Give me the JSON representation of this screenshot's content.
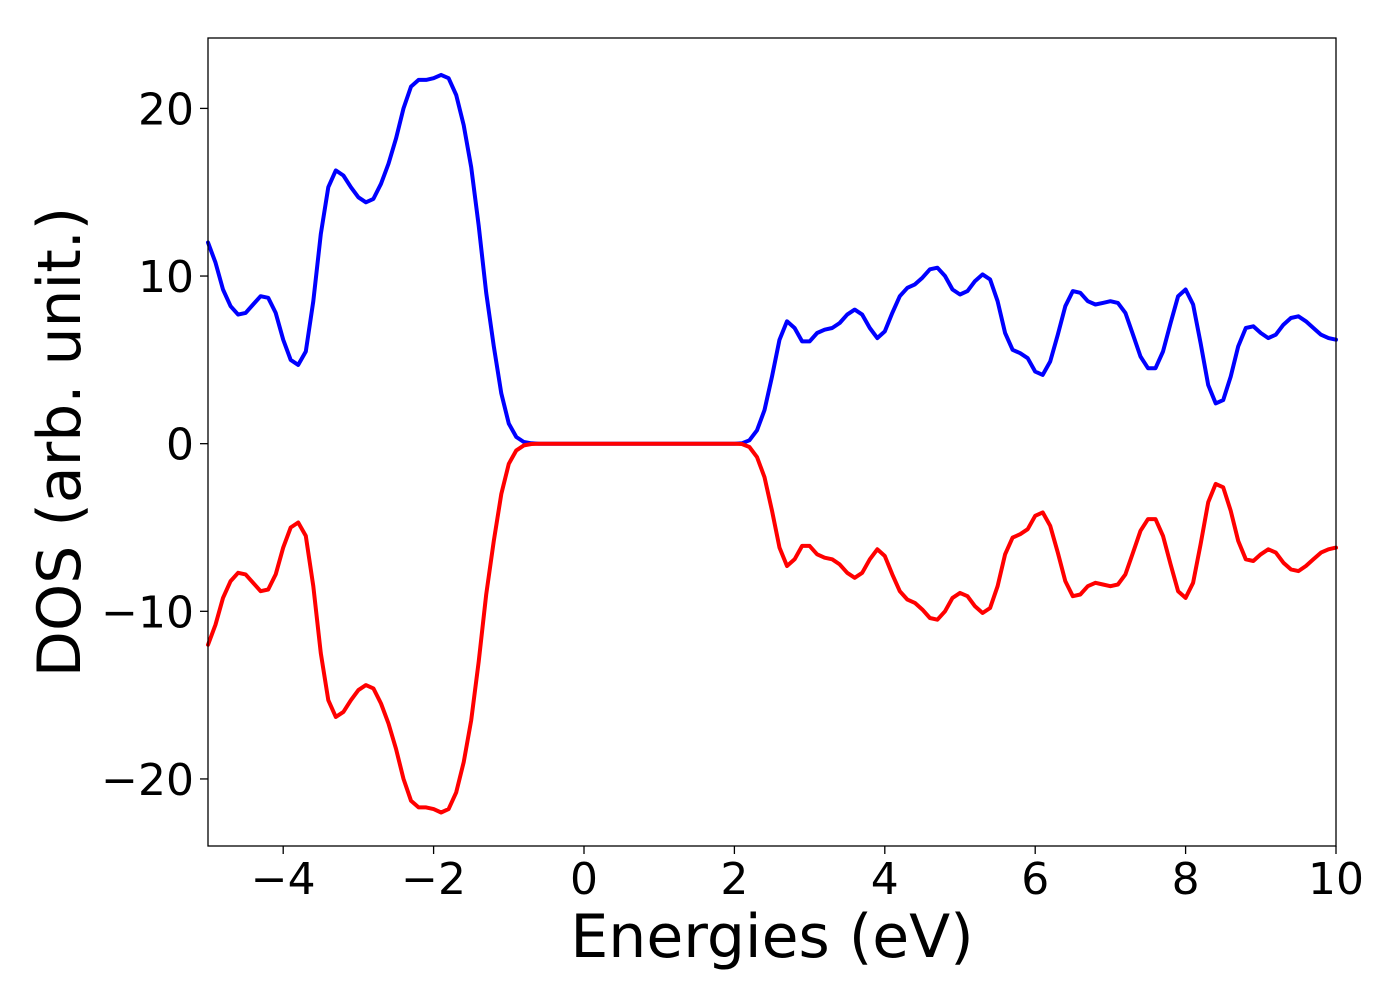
{
  "chart_data": {
    "type": "line",
    "title": "",
    "xlabel": "Energies (eV)",
    "ylabel": "DOS (arb. unit.)",
    "xlim": [
      -5,
      10
    ],
    "ylim": [
      -24,
      24.2
    ],
    "grid": false,
    "legend": "none",
    "x_ticks": [
      -4,
      -2,
      0,
      2,
      4,
      6,
      8,
      10
    ],
    "x_tick_labels": [
      "−4",
      "−2",
      "0",
      "2",
      "4",
      "6",
      "8",
      "10"
    ],
    "y_ticks": [
      -20,
      -10,
      0,
      10,
      20
    ],
    "y_tick_labels": [
      "−20",
      "−10",
      "0",
      "10",
      "20"
    ],
    "series": [
      {
        "color": "#0000ff",
        "points": [
          [
            -5.0,
            12.0
          ],
          [
            -4.9,
            10.8
          ],
          [
            -4.8,
            9.2
          ],
          [
            -4.7,
            8.2
          ],
          [
            -4.6,
            7.7
          ],
          [
            -4.5,
            7.8
          ],
          [
            -4.4,
            8.3
          ],
          [
            -4.3,
            8.8
          ],
          [
            -4.2,
            8.7
          ],
          [
            -4.1,
            7.8
          ],
          [
            -4.0,
            6.2
          ],
          [
            -3.9,
            5.0
          ],
          [
            -3.8,
            4.7
          ],
          [
            -3.7,
            5.5
          ],
          [
            -3.6,
            8.5
          ],
          [
            -3.5,
            12.5
          ],
          [
            -3.4,
            15.3
          ],
          [
            -3.3,
            16.3
          ],
          [
            -3.2,
            16.0
          ],
          [
            -3.1,
            15.3
          ],
          [
            -3.0,
            14.7
          ],
          [
            -2.9,
            14.4
          ],
          [
            -2.8,
            14.6
          ],
          [
            -2.7,
            15.5
          ],
          [
            -2.6,
            16.7
          ],
          [
            -2.5,
            18.2
          ],
          [
            -2.4,
            20.0
          ],
          [
            -2.3,
            21.3
          ],
          [
            -2.2,
            21.7
          ],
          [
            -2.1,
            21.7
          ],
          [
            -2.0,
            21.8
          ],
          [
            -1.9,
            22.0
          ],
          [
            -1.8,
            21.8
          ],
          [
            -1.7,
            20.8
          ],
          [
            -1.6,
            19.0
          ],
          [
            -1.5,
            16.5
          ],
          [
            -1.4,
            13.0
          ],
          [
            -1.3,
            9.0
          ],
          [
            -1.2,
            5.8
          ],
          [
            -1.1,
            3.0
          ],
          [
            -1.0,
            1.2
          ],
          [
            -0.9,
            0.4
          ],
          [
            -0.8,
            0.1
          ],
          [
            -0.7,
            0.02
          ],
          [
            -0.6,
            0.0
          ],
          [
            -0.4,
            0.0
          ],
          [
            0.0,
            0.0
          ],
          [
            0.5,
            0.0
          ],
          [
            1.0,
            0.0
          ],
          [
            1.5,
            0.0
          ],
          [
            2.0,
            0.0
          ],
          [
            2.1,
            0.02
          ],
          [
            2.2,
            0.2
          ],
          [
            2.3,
            0.8
          ],
          [
            2.4,
            2.0
          ],
          [
            2.5,
            4.0
          ],
          [
            2.6,
            6.2
          ],
          [
            2.7,
            7.3
          ],
          [
            2.8,
            6.9
          ],
          [
            2.9,
            6.1
          ],
          [
            3.0,
            6.1
          ],
          [
            3.1,
            6.6
          ],
          [
            3.2,
            6.8
          ],
          [
            3.3,
            6.9
          ],
          [
            3.4,
            7.2
          ],
          [
            3.5,
            7.7
          ],
          [
            3.6,
            8.0
          ],
          [
            3.7,
            7.7
          ],
          [
            3.8,
            6.9
          ],
          [
            3.9,
            6.3
          ],
          [
            4.0,
            6.7
          ],
          [
            4.1,
            7.8
          ],
          [
            4.2,
            8.8
          ],
          [
            4.3,
            9.3
          ],
          [
            4.4,
            9.5
          ],
          [
            4.5,
            9.9
          ],
          [
            4.6,
            10.4
          ],
          [
            4.7,
            10.5
          ],
          [
            4.8,
            10.0
          ],
          [
            4.9,
            9.2
          ],
          [
            5.0,
            8.9
          ],
          [
            5.1,
            9.1
          ],
          [
            5.2,
            9.7
          ],
          [
            5.3,
            10.1
          ],
          [
            5.4,
            9.8
          ],
          [
            5.5,
            8.5
          ],
          [
            5.6,
            6.6
          ],
          [
            5.7,
            5.6
          ],
          [
            5.8,
            5.4
          ],
          [
            5.9,
            5.1
          ],
          [
            6.0,
            4.3
          ],
          [
            6.1,
            4.1
          ],
          [
            6.2,
            4.9
          ],
          [
            6.3,
            6.5
          ],
          [
            6.4,
            8.2
          ],
          [
            6.5,
            9.1
          ],
          [
            6.6,
            9.0
          ],
          [
            6.7,
            8.5
          ],
          [
            6.8,
            8.3
          ],
          [
            6.9,
            8.4
          ],
          [
            7.0,
            8.5
          ],
          [
            7.1,
            8.4
          ],
          [
            7.2,
            7.8
          ],
          [
            7.3,
            6.5
          ],
          [
            7.4,
            5.2
          ],
          [
            7.5,
            4.5
          ],
          [
            7.6,
            4.5
          ],
          [
            7.7,
            5.5
          ],
          [
            7.8,
            7.2
          ],
          [
            7.9,
            8.8
          ],
          [
            8.0,
            9.2
          ],
          [
            8.1,
            8.3
          ],
          [
            8.2,
            6.0
          ],
          [
            8.3,
            3.5
          ],
          [
            8.4,
            2.4
          ],
          [
            8.5,
            2.6
          ],
          [
            8.6,
            4.0
          ],
          [
            8.7,
            5.8
          ],
          [
            8.8,
            6.9
          ],
          [
            8.9,
            7.0
          ],
          [
            9.0,
            6.6
          ],
          [
            9.1,
            6.3
          ],
          [
            9.2,
            6.5
          ],
          [
            9.3,
            7.1
          ],
          [
            9.4,
            7.5
          ],
          [
            9.5,
            7.6
          ],
          [
            9.6,
            7.3
          ],
          [
            9.7,
            6.9
          ],
          [
            9.8,
            6.5
          ],
          [
            9.9,
            6.3
          ],
          [
            10.0,
            6.2
          ]
        ]
      },
      {
        "color": "#ff0000",
        "points": [
          [
            -5.0,
            -12.0
          ],
          [
            -4.9,
            -10.8
          ],
          [
            -4.8,
            -9.2
          ],
          [
            -4.7,
            -8.2
          ],
          [
            -4.6,
            -7.7
          ],
          [
            -4.5,
            -7.8
          ],
          [
            -4.4,
            -8.3
          ],
          [
            -4.3,
            -8.8
          ],
          [
            -4.2,
            -8.7
          ],
          [
            -4.1,
            -7.8
          ],
          [
            -4.0,
            -6.2
          ],
          [
            -3.9,
            -5.0
          ],
          [
            -3.8,
            -4.7
          ],
          [
            -3.7,
            -5.5
          ],
          [
            -3.6,
            -8.5
          ],
          [
            -3.5,
            -12.5
          ],
          [
            -3.4,
            -15.3
          ],
          [
            -3.3,
            -16.3
          ],
          [
            -3.2,
            -16.0
          ],
          [
            -3.1,
            -15.3
          ],
          [
            -3.0,
            -14.7
          ],
          [
            -2.9,
            -14.4
          ],
          [
            -2.8,
            -14.6
          ],
          [
            -2.7,
            -15.5
          ],
          [
            -2.6,
            -16.7
          ],
          [
            -2.5,
            -18.2
          ],
          [
            -2.4,
            -20.0
          ],
          [
            -2.3,
            -21.3
          ],
          [
            -2.2,
            -21.7
          ],
          [
            -2.1,
            -21.7
          ],
          [
            -2.0,
            -21.8
          ],
          [
            -1.9,
            -22.0
          ],
          [
            -1.8,
            -21.8
          ],
          [
            -1.7,
            -20.8
          ],
          [
            -1.6,
            -19.0
          ],
          [
            -1.5,
            -16.5
          ],
          [
            -1.4,
            -13.0
          ],
          [
            -1.3,
            -9.0
          ],
          [
            -1.2,
            -5.8
          ],
          [
            -1.1,
            -3.0
          ],
          [
            -1.0,
            -1.2
          ],
          [
            -0.9,
            -0.4
          ],
          [
            -0.8,
            -0.1
          ],
          [
            -0.7,
            -0.02
          ],
          [
            -0.6,
            0.0
          ],
          [
            -0.4,
            0.0
          ],
          [
            0.0,
            0.0
          ],
          [
            0.5,
            0.0
          ],
          [
            1.0,
            0.0
          ],
          [
            1.5,
            0.0
          ],
          [
            2.0,
            0.0
          ],
          [
            2.1,
            -0.02
          ],
          [
            2.2,
            -0.2
          ],
          [
            2.3,
            -0.8
          ],
          [
            2.4,
            -2.0
          ],
          [
            2.5,
            -4.0
          ],
          [
            2.6,
            -6.2
          ],
          [
            2.7,
            -7.3
          ],
          [
            2.8,
            -6.9
          ],
          [
            2.9,
            -6.1
          ],
          [
            3.0,
            -6.1
          ],
          [
            3.1,
            -6.6
          ],
          [
            3.2,
            -6.8
          ],
          [
            3.3,
            -6.9
          ],
          [
            3.4,
            -7.2
          ],
          [
            3.5,
            -7.7
          ],
          [
            3.6,
            -8.0
          ],
          [
            3.7,
            -7.7
          ],
          [
            3.8,
            -6.9
          ],
          [
            3.9,
            -6.3
          ],
          [
            4.0,
            -6.7
          ],
          [
            4.1,
            -7.8
          ],
          [
            4.2,
            -8.8
          ],
          [
            4.3,
            -9.3
          ],
          [
            4.4,
            -9.5
          ],
          [
            4.5,
            -9.9
          ],
          [
            4.6,
            -10.4
          ],
          [
            4.7,
            -10.5
          ],
          [
            4.8,
            -10.0
          ],
          [
            4.9,
            -9.2
          ],
          [
            5.0,
            -8.9
          ],
          [
            5.1,
            -9.1
          ],
          [
            5.2,
            -9.7
          ],
          [
            5.3,
            -10.1
          ],
          [
            5.4,
            -9.8
          ],
          [
            5.5,
            -8.5
          ],
          [
            5.6,
            -6.6
          ],
          [
            5.7,
            -5.6
          ],
          [
            5.8,
            -5.4
          ],
          [
            5.9,
            -5.1
          ],
          [
            6.0,
            -4.3
          ],
          [
            6.1,
            -4.1
          ],
          [
            6.2,
            -4.9
          ],
          [
            6.3,
            -6.5
          ],
          [
            6.4,
            -8.2
          ],
          [
            6.5,
            -9.1
          ],
          [
            6.6,
            -9.0
          ],
          [
            6.7,
            -8.5
          ],
          [
            6.8,
            -8.3
          ],
          [
            6.9,
            -8.4
          ],
          [
            7.0,
            -8.5
          ],
          [
            7.1,
            -8.4
          ],
          [
            7.2,
            -7.8
          ],
          [
            7.3,
            -6.5
          ],
          [
            7.4,
            -5.2
          ],
          [
            7.5,
            -4.5
          ],
          [
            7.6,
            -4.5
          ],
          [
            7.7,
            -5.5
          ],
          [
            7.8,
            -7.2
          ],
          [
            7.9,
            -8.8
          ],
          [
            8.0,
            -9.2
          ],
          [
            8.1,
            -8.3
          ],
          [
            8.2,
            -6.0
          ],
          [
            8.3,
            -3.5
          ],
          [
            8.4,
            -2.4
          ],
          [
            8.5,
            -2.6
          ],
          [
            8.6,
            -4.0
          ],
          [
            8.7,
            -5.8
          ],
          [
            8.8,
            -6.9
          ],
          [
            8.9,
            -7.0
          ],
          [
            9.0,
            -6.6
          ],
          [
            9.1,
            -6.3
          ],
          [
            9.2,
            -6.5
          ],
          [
            9.3,
            -7.1
          ],
          [
            9.4,
            -7.5
          ],
          [
            9.5,
            -7.6
          ],
          [
            9.6,
            -7.3
          ],
          [
            9.7,
            -6.9
          ],
          [
            9.8,
            -6.5
          ],
          [
            9.9,
            -6.3
          ],
          [
            10.0,
            -6.2
          ]
        ]
      }
    ]
  }
}
